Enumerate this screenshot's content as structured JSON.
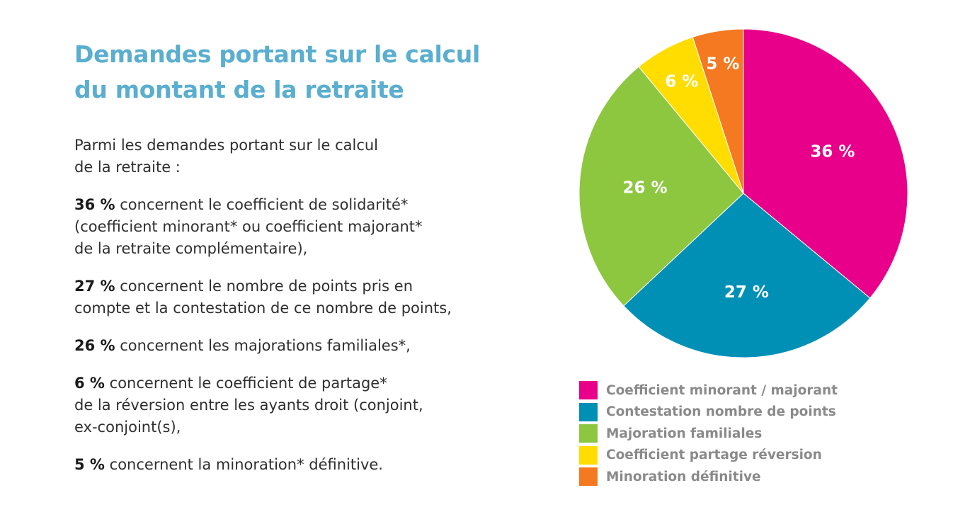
{
  "title": {
    "line1": "Demandes portant sur le calcul",
    "line2": "du montant de la retraite"
  },
  "intro": {
    "line1": "Parmi les demandes portant sur le calcul",
    "line2": "de la retraite :"
  },
  "items": [
    {
      "value": "36 %",
      "lines": [
        "concernent le coefficient de solidarité*",
        "(coefficient minorant* ou coefficient majorant*",
        "de la retraite complémentaire),"
      ]
    },
    {
      "value": "27 %",
      "lines": [
        "concernent le nombre de points pris en",
        "compte et la contestation de ce nombre de points,"
      ]
    },
    {
      "value": "26 %",
      "lines": [
        "concernent les majorations familiales*,"
      ]
    },
    {
      "value": "6 %",
      "lines": [
        "concernent le coefficient de partage*",
        "de la réversion entre les ayants droit (conjoint,",
        "ex-conjoint(s),"
      ]
    },
    {
      "value": "5 %",
      "lines": [
        "concernent la minoration* définitive."
      ]
    }
  ],
  "chart_data": {
    "type": "pie",
    "unit": "%",
    "slices": [
      {
        "name": "Coefficient minorant / majorant",
        "value": 36,
        "label": "36 %",
        "color": "#e8008a"
      },
      {
        "name": "Contestation nombre de points",
        "value": 27,
        "label": "27 %",
        "color": "#0090b6"
      },
      {
        "name": "Majoration familiales",
        "value": 26,
        "label": "26 %",
        "color": "#8dc63f"
      },
      {
        "name": "Coefficient partage réversion",
        "value": 6,
        "label": "6 %",
        "color": "#ffdd00"
      },
      {
        "name": "Minoration définitive",
        "value": 5,
        "label": "5 %",
        "color": "#f47920"
      }
    ],
    "start": "12 o'clock",
    "direction": "clockwise",
    "legend": "bottom"
  }
}
